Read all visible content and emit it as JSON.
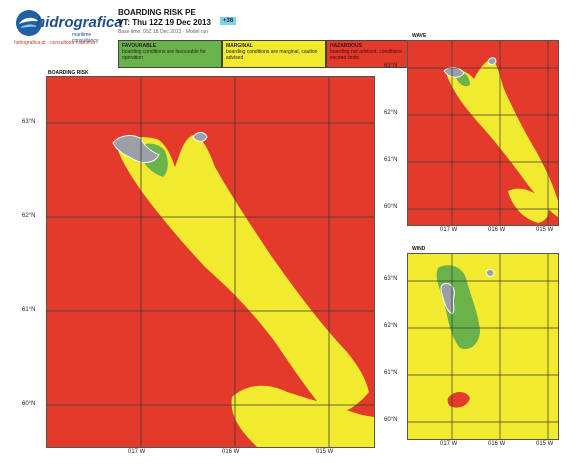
{
  "header": {
    "brand_name": "hidrografica",
    "brand_tagline": "maritime consultancy",
    "brand_subline": "hidrografica.pt · consultoria maritima",
    "product_title": "BOARDING RISK PE",
    "valid_time": "VT: Thu 12Z 19 Dec 2013",
    "time_badge": "+36",
    "run_info": "Base time: 00Z 18 Dec 2013 · Model run"
  },
  "legend": [
    {
      "id": "favourable",
      "title": "FAVOURABLE",
      "desc": "boarding conditions are favourable for operation",
      "color": "#6ab34a"
    },
    {
      "id": "marginal",
      "title": "MARGINAL",
      "desc": "boarding conditions are marginal, caution advised",
      "color": "#f2ea2e"
    },
    {
      "id": "hazardous",
      "title": "HAZARDOUS",
      "desc": "boarding not advised, conditions exceed limits",
      "color": "#e33a2c"
    }
  ],
  "panels": {
    "main": {
      "title": "BOARDING RISK",
      "lat_labels": [
        "63°N",
        "62°N",
        "61°N",
        "60°N"
      ],
      "lon_labels": [
        "017 W",
        "016 W",
        "015 W"
      ]
    },
    "wave": {
      "title": "WAVE",
      "lat_labels": [
        "63°N",
        "62°N",
        "61°N",
        "60°N"
      ],
      "lon_labels": [
        "017 W",
        "016 W",
        "015 W"
      ]
    },
    "wind": {
      "title": "WIND",
      "lat_labels": [
        "63°N",
        "62°N",
        "61°N",
        "60°N"
      ],
      "lon_labels": [
        "017 W",
        "016 W",
        "015 W"
      ]
    }
  },
  "colors": {
    "hazardous": "#e33a2c",
    "marginal": "#f2ea2e",
    "favourable": "#6ab34a",
    "land": "#9aa0a6",
    "grid": "#3a3a3a"
  }
}
